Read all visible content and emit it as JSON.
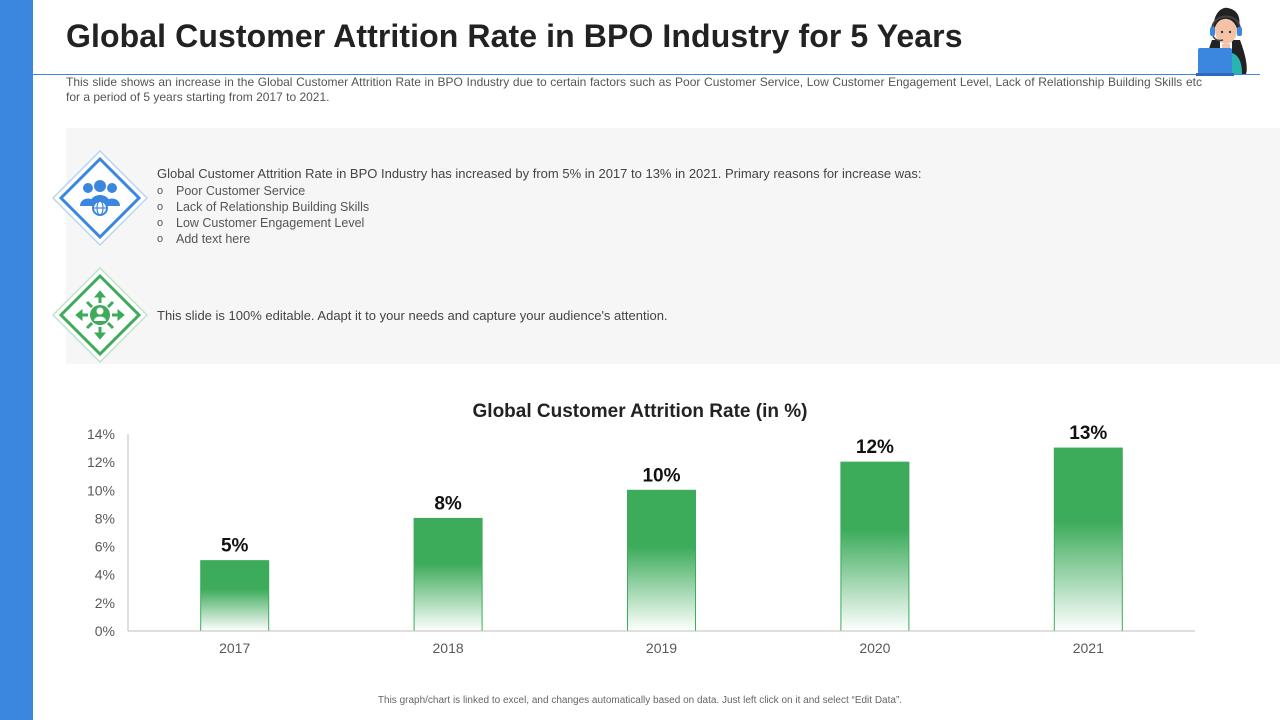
{
  "slide": {
    "title": "Global Customer Attrition Rate in BPO Industry for 5 Years",
    "subtitle": "This slide shows an increase in the Global Customer Attrition Rate in BPO Industry due to certain factors such as Poor Customer Service, Low Customer Engagement Level, Lack of Relationship Building Skills etc for a period of 5 years starting from 2017 to 2021.",
    "footer": "This graph/chart is linked to excel, and changes automatically based on data. Just left click on it and select “Edit Data”.",
    "accent_color": "#3b87e0",
    "secondary_color": "#3cab5a"
  },
  "points": [
    {
      "icon": "users-globe-icon",
      "text": "Global Customer Attrition Rate in BPO Industry has increased by from 5% in 2017 to 13% in 2021. Primary reasons for increase was:",
      "bullet": "o",
      "bullets": [
        "Poor Customer Service",
        "Lack of Relationship Building Skills",
        "Low Customer Engagement Level",
        "Add text here"
      ]
    },
    {
      "icon": "person-arrows-icon",
      "text": "This slide is 100% editable. Adapt it to your needs and capture your audience's attention."
    }
  ],
  "chart_data": {
    "type": "bar",
    "title": "Global Customer Attrition Rate (in %)",
    "categories": [
      "2017",
      "2018",
      "2019",
      "2020",
      "2021"
    ],
    "values": [
      5,
      8,
      10,
      12,
      13
    ],
    "data_labels": [
      "5%",
      "8%",
      "10%",
      "12%",
      "13%"
    ],
    "ylim": [
      0,
      14
    ],
    "yticks": [
      "0%",
      "2%",
      "4%",
      "6%",
      "8%",
      "10%",
      "12%",
      "14%"
    ],
    "xlabel": "",
    "ylabel": "",
    "grid": false,
    "legend": "none",
    "bar_color": "#3cab5a"
  }
}
